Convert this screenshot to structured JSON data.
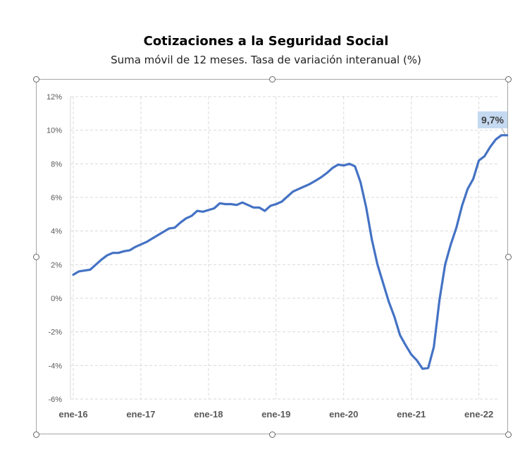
{
  "chart_data": {
    "type": "line",
    "title": "Cotizaciones a la Seguridad Social",
    "subtitle": "Suma móvil de 12 meses. Tasa de variación interanual (%)",
    "xlabel": "",
    "ylabel": "",
    "ylim": [
      -6,
      12
    ],
    "y_ticks": [
      -6,
      -4,
      -2,
      0,
      2,
      4,
      6,
      8,
      10,
      12
    ],
    "y_tick_labels": [
      "-6%",
      "-4%",
      "-2%",
      "0%",
      "2%",
      "4%",
      "6%",
      "8%",
      "10%",
      "12%"
    ],
    "x_tick_labels": [
      "ene-16",
      "ene-17",
      "ene-18",
      "ene-19",
      "ene-20",
      "ene-21",
      "ene-22"
    ],
    "x_start": "ene-16",
    "x_step": "month",
    "grid": true,
    "series": [
      {
        "color": "#4472c4",
        "values": [
          1.4,
          1.6,
          1.65,
          1.7,
          2.0,
          2.3,
          2.55,
          2.7,
          2.7,
          2.8,
          2.85,
          3.05,
          3.2,
          3.35,
          3.55,
          3.75,
          3.95,
          4.15,
          4.2,
          4.5,
          4.75,
          4.9,
          5.2,
          5.15,
          5.25,
          5.35,
          5.65,
          5.6,
          5.6,
          5.55,
          5.7,
          5.55,
          5.4,
          5.4,
          5.2,
          5.5,
          5.6,
          5.75,
          6.05,
          6.35,
          6.5,
          6.65,
          6.8,
          7.0,
          7.2,
          7.45,
          7.75,
          7.95,
          7.9,
          8.0,
          7.85,
          6.9,
          5.4,
          3.5,
          2.0,
          0.9,
          -0.2,
          -1.1,
          -2.2,
          -2.8,
          -3.35,
          -3.7,
          -4.2,
          -4.15,
          -2.9,
          -0.1,
          2.0,
          3.2,
          4.2,
          5.5,
          6.5,
          7.1,
          8.2,
          8.45,
          9.0,
          9.45,
          9.7,
          9.7
        ]
      }
    ],
    "annotation": {
      "label": "9,7%",
      "value": 9.7
    }
  }
}
